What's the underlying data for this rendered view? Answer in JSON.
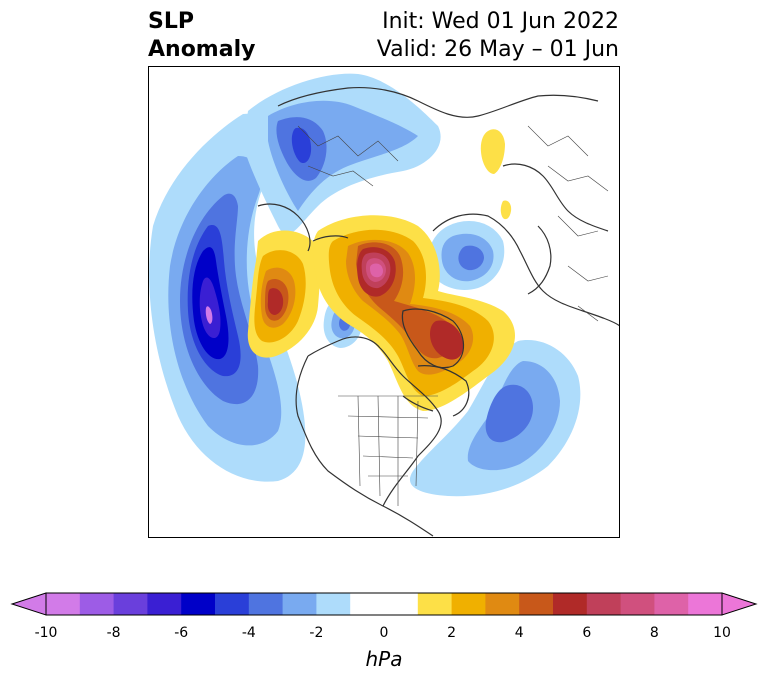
{
  "title": {
    "line1": "SLP",
    "line2": "Anomaly",
    "init": "Init: Wed 01 Jun 2022",
    "valid": "Valid: 26 May – 01 Jun"
  },
  "colorbar": {
    "unit": "hPa",
    "ticks": [
      "-10",
      "-8",
      "-6",
      "-4",
      "-2",
      "0",
      "2",
      "4",
      "6",
      "8",
      "10"
    ],
    "colors": [
      "#d27be8",
      "#9d5ce6",
      "#6a3fdc",
      "#3a1fd3",
      "#0000c8",
      "#2a3fd8",
      "#4f74e0",
      "#79aaf0",
      "#aedcfb",
      "#ffffff",
      "#fde047",
      "#f0b000",
      "#e08a12",
      "#c8581a",
      "#b02a28",
      "#c0405a",
      "#d0507e",
      "#de62a8",
      "#ec76d8"
    ]
  },
  "map_colors": {
    "coast": "#333333",
    "border": "#444444"
  }
}
